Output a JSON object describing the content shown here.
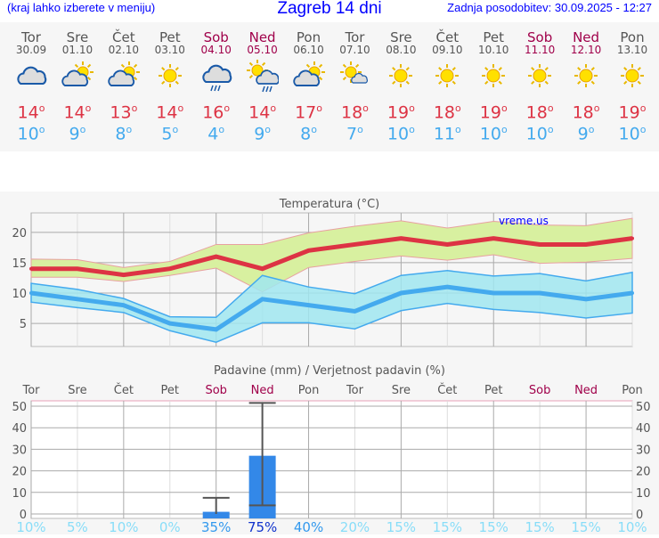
{
  "header": {
    "hint": "(kraj lahko izberete v meniju)",
    "title": "Zagreb 14 dni",
    "updated": "Zadnja posodobitev: 30.09.2025 - 12:27"
  },
  "days": [
    {
      "name": "Tor",
      "date": "30.09",
      "weekend": false,
      "icon": "cloudy",
      "max": "14",
      "min": "10",
      "prob": "10%"
    },
    {
      "name": "Sre",
      "date": "01.10",
      "weekend": false,
      "icon": "sun-cloud",
      "max": "14",
      "min": "9",
      "prob": "5%"
    },
    {
      "name": "Čet",
      "date": "02.10",
      "weekend": false,
      "icon": "sun-cloud",
      "max": "13",
      "min": "8",
      "prob": "10%"
    },
    {
      "name": "Pet",
      "date": "03.10",
      "weekend": false,
      "icon": "sun",
      "max": "14",
      "min": "5",
      "prob": "0%"
    },
    {
      "name": "Sob",
      "date": "04.10",
      "weekend": true,
      "icon": "cloud-rain",
      "max": "16",
      "min": "4",
      "prob": "35%"
    },
    {
      "name": "Ned",
      "date": "05.10",
      "weekend": true,
      "icon": "sun-cloud-rain",
      "max": "14",
      "min": "9",
      "prob": "75%"
    },
    {
      "name": "Pon",
      "date": "06.10",
      "weekend": false,
      "icon": "sun-cloud",
      "max": "17",
      "min": "8",
      "prob": "40%"
    },
    {
      "name": "Tor",
      "date": "07.10",
      "weekend": false,
      "icon": "sun-small-cloud",
      "max": "18",
      "min": "7",
      "prob": "20%"
    },
    {
      "name": "Sre",
      "date": "08.10",
      "weekend": false,
      "icon": "sun",
      "max": "19",
      "min": "10",
      "prob": "15%"
    },
    {
      "name": "Čet",
      "date": "09.10",
      "weekend": false,
      "icon": "sun",
      "max": "18",
      "min": "11",
      "prob": "15%"
    },
    {
      "name": "Pet",
      "date": "10.10",
      "weekend": false,
      "icon": "sun",
      "max": "19",
      "min": "10",
      "prob": "15%"
    },
    {
      "name": "Sob",
      "date": "11.10",
      "weekend": true,
      "icon": "sun",
      "max": "18",
      "min": "10",
      "prob": "15%"
    },
    {
      "name": "Ned",
      "date": "12.10",
      "weekend": true,
      "icon": "sun",
      "max": "18",
      "min": "9",
      "prob": "15%"
    },
    {
      "name": "Pon",
      "date": "13.10",
      "weekend": false,
      "icon": "sun",
      "max": "19",
      "min": "10",
      "prob": "10%"
    }
  ],
  "deg": "o",
  "chart_data": [
    {
      "type": "line",
      "title": "Temperatura (°C)",
      "watermark": "vreme.us",
      "ylim": [
        1.2,
        23.2
      ],
      "yticks": [
        "5",
        "10",
        "15",
        "20"
      ],
      "grid": true,
      "series": [
        {
          "role": "max",
          "color": "#dd3344",
          "values": [
            14,
            14,
            13,
            14,
            16,
            14,
            17,
            18,
            19,
            18,
            19,
            18,
            18,
            19
          ],
          "band_upper": [
            15.6,
            15.5,
            14.2,
            15.2,
            18,
            18,
            19.9,
            21,
            21.9,
            20.7,
            21.8,
            21.2,
            21.1,
            22.3
          ],
          "band_lower": [
            12.6,
            12.6,
            11.9,
            12.9,
            14.1,
            10.2,
            14.2,
            15.2,
            16.1,
            15.4,
            16.3,
            14.9,
            15.1,
            15.7
          ],
          "band_color": "#d8f0a0"
        },
        {
          "role": "min",
          "color": "#44aaee",
          "values": [
            10,
            9,
            8,
            5,
            4,
            9,
            8,
            7,
            10,
            11,
            10,
            10,
            9,
            10
          ],
          "band_upper": [
            11.6,
            10.6,
            9.1,
            6.1,
            6.0,
            12.9,
            11,
            9.9,
            12.9,
            13.7,
            12.8,
            13.2,
            12.0,
            13.4
          ],
          "band_lower": [
            8.5,
            7.6,
            6.8,
            3.8,
            1.9,
            5.1,
            5.1,
            4.1,
            7.1,
            8.3,
            7.3,
            6.8,
            5.9,
            6.7
          ],
          "band_color": "#a0e6f0"
        }
      ]
    },
    {
      "type": "bar",
      "title": "Padavine (mm) / Verjetnost padavin (%)",
      "ylim": [
        0,
        52
      ],
      "yticks": [
        "0",
        "10",
        "20",
        "30",
        "40",
        "50"
      ],
      "grid": true,
      "values": [
        0,
        0,
        0,
        0,
        1,
        27,
        0,
        0,
        0,
        0,
        0,
        0,
        0,
        0
      ],
      "error_low": [
        null,
        null,
        null,
        null,
        0,
        4,
        null,
        null,
        null,
        null,
        null,
        null,
        null,
        null
      ],
      "error_high": [
        null,
        null,
        null,
        null,
        7.5,
        51.5,
        null,
        null,
        null,
        null,
        null,
        null,
        null,
        null
      ],
      "bar_color": "#3388e8"
    }
  ]
}
